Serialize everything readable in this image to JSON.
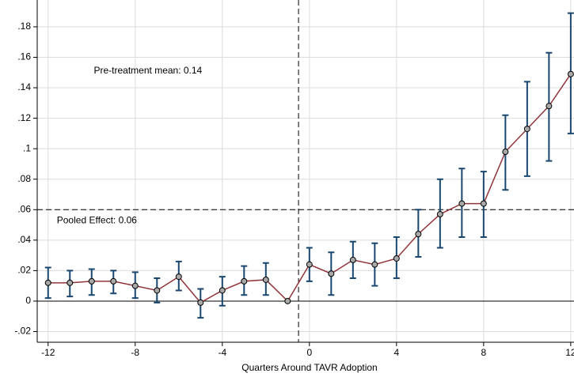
{
  "chart_data": {
    "type": "event-study",
    "xlabel": "Quarters Around TAVR Adoption",
    "annotations": [
      "Pre-treatment mean: 0.14",
      "Pooled Effect: 0.06"
    ],
    "x": [
      -12,
      -11,
      -10,
      -9,
      -8,
      -7,
      -6,
      -5,
      -4,
      -3,
      -2,
      -1,
      0,
      1,
      2,
      3,
      4,
      5,
      6,
      7,
      8,
      9,
      10,
      11,
      12
    ],
    "values": [
      0.012,
      0.012,
      0.013,
      0.013,
      0.01,
      0.007,
      0.016,
      -0.001,
      0.007,
      0.013,
      0.014,
      0,
      0.024,
      0.018,
      0.027,
      0.024,
      0.028,
      0.044,
      0.057,
      0.064,
      0.064,
      0.098,
      0.113,
      0.128,
      0.149
    ],
    "lower": [
      0.002,
      0.003,
      0.004,
      0.005,
      0.002,
      -0.001,
      0.007,
      -0.011,
      -0.003,
      0.004,
      0.004,
      null,
      0.013,
      0.004,
      0.015,
      0.01,
      0.015,
      0.029,
      0.035,
      0.042,
      0.042,
      0.073,
      0.082,
      0.092,
      0.11
    ],
    "upper": [
      0.022,
      0.02,
      0.021,
      0.02,
      0.019,
      0.015,
      0.026,
      0.008,
      0.016,
      0.023,
      0.025,
      null,
      0.035,
      0.032,
      0.039,
      0.038,
      0.042,
      0.06,
      0.08,
      0.087,
      0.085,
      0.122,
      0.144,
      0.163,
      0.189
    ],
    "line_color": "#90353b",
    "errorbar_color": "#1a476f",
    "marker_color": "#a9a9a9",
    "xlim": [
      -12.5,
      12.15
    ],
    "ylim": [
      -0.027,
      0.1976
    ],
    "xticks": [
      -12,
      -8,
      -4,
      0,
      4,
      8,
      12
    ],
    "yticks": [
      {
        "value": -0.02,
        "label": "-.02"
      },
      0,
      {
        "value": 0.02,
        "label": ".02"
      },
      {
        "value": 0.04,
        "label": ".04"
      },
      {
        "value": 0.06,
        "label": ".06"
      },
      {
        "value": 0.08,
        "label": ".08"
      },
      {
        "value": 0.1,
        "label": ".1"
      },
      {
        "value": 0.12,
        "label": ".12"
      },
      {
        "value": 0.14,
        "label": ".14"
      },
      {
        "value": 0.16,
        "label": ".16"
      },
      {
        "value": 0.18,
        "label": ".18"
      }
    ],
    "vline": -0.5,
    "hline": 0.06,
    "baseline": 0,
    "grid": true
  }
}
